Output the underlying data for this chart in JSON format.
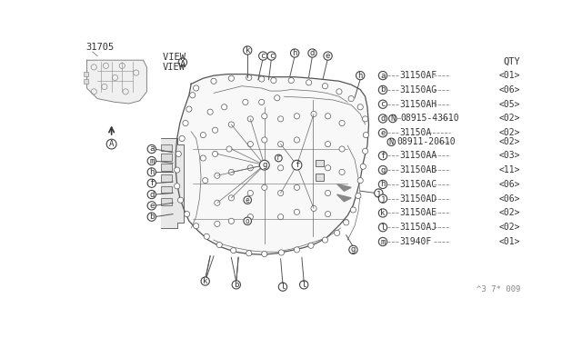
{
  "bg_color": "#ffffff",
  "part_number_label": "31705",
  "qty_header": "QTY",
  "parts": [
    {
      "label": "a",
      "part": "31150AF",
      "qty": "01",
      "type": "normal"
    },
    {
      "label": "b",
      "part": "31150AG",
      "qty": "06",
      "type": "normal"
    },
    {
      "label": "c",
      "part": "31150AH",
      "qty": "05",
      "type": "normal"
    },
    {
      "label": "d",
      "part": "08915-43610",
      "qty": "02",
      "type": "N_prefix"
    },
    {
      "label": "E",
      "part": "31150A",
      "qty": "02",
      "type": "E_special",
      "sub_part": "08911-20610",
      "sub_qty": "02"
    },
    {
      "label": "f",
      "part": "31150AA",
      "qty": "03",
      "type": "normal"
    },
    {
      "label": "g",
      "part": "31150AB",
      "qty": "11",
      "type": "normal"
    },
    {
      "label": "h",
      "part": "31150AC",
      "qty": "06",
      "type": "normal"
    },
    {
      "label": "j",
      "part": "31150AD",
      "qty": "06",
      "type": "normal"
    },
    {
      "label": "k",
      "part": "31150AE",
      "qty": "02",
      "type": "normal"
    },
    {
      "label": "l",
      "part": "31150AJ",
      "qty": "02",
      "type": "normal"
    },
    {
      "label": "m",
      "part": "31940F",
      "qty": "01",
      "type": "normal"
    }
  ],
  "footer": "^3 7* 009",
  "line_color": "#555555",
  "text_color": "#333333"
}
